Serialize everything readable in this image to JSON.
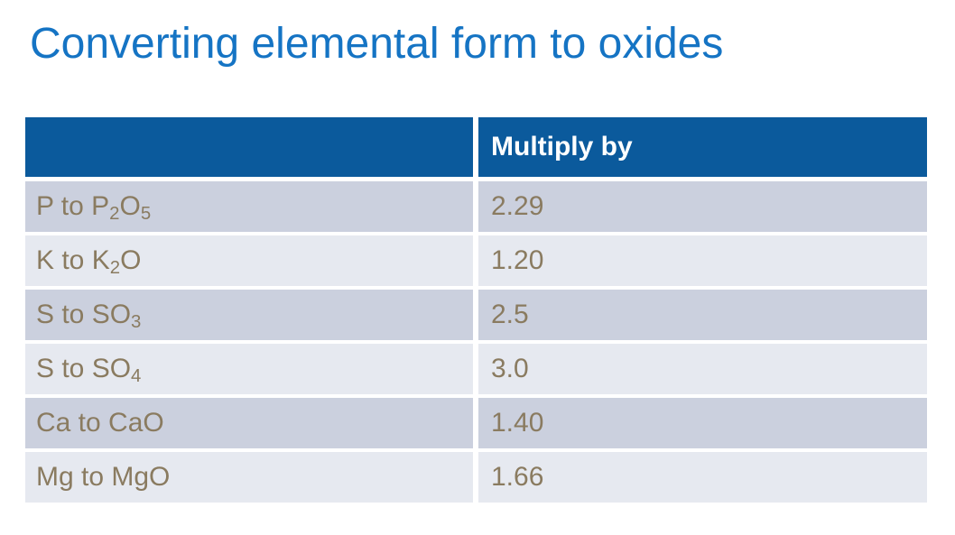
{
  "title": "Converting elemental form to oxides",
  "colors": {
    "title_text": "#1574C4",
    "table_header_bg": "#0B5A9C",
    "table_header_text": "#FFFFFF",
    "row_dark_bg": "#CBD0DE",
    "row_light_bg": "#E6E9F0",
    "row_text": "#8A7B60"
  },
  "table": {
    "header": {
      "label_col": "",
      "value_col": "Multiply by"
    },
    "rows": [
      {
        "parts": [
          {
            "text": "P to P"
          },
          {
            "sub": "2"
          },
          {
            "text": "O"
          },
          {
            "sub": "5"
          }
        ],
        "value": "2.29"
      },
      {
        "parts": [
          {
            "text": "K to K"
          },
          {
            "sub": "2"
          },
          {
            "text": "O"
          }
        ],
        "value": "1.20"
      },
      {
        "parts": [
          {
            "text": "S to SO"
          },
          {
            "sub": "3"
          }
        ],
        "value": "2.5"
      },
      {
        "parts": [
          {
            "text": "S to SO"
          },
          {
            "sub": "4"
          }
        ],
        "value": "3.0"
      },
      {
        "parts": [
          {
            "text": "Ca to CaO"
          }
        ],
        "value": "1.40"
      },
      {
        "parts": [
          {
            "text": "Mg to MgO"
          }
        ],
        "value": "1.66"
      }
    ]
  },
  "chart_data": {
    "type": "table",
    "title": "Converting elemental form to oxides",
    "columns": [
      "",
      "Multiply by"
    ],
    "rows": [
      [
        "P to P2O5",
        "2.29"
      ],
      [
        "K to K2O",
        "1.20"
      ],
      [
        "S to SO3",
        "2.5"
      ],
      [
        "S to SO4",
        "3.0"
      ],
      [
        "Ca to CaO",
        "1.40"
      ],
      [
        "Mg to MgO",
        "1.66"
      ]
    ]
  }
}
